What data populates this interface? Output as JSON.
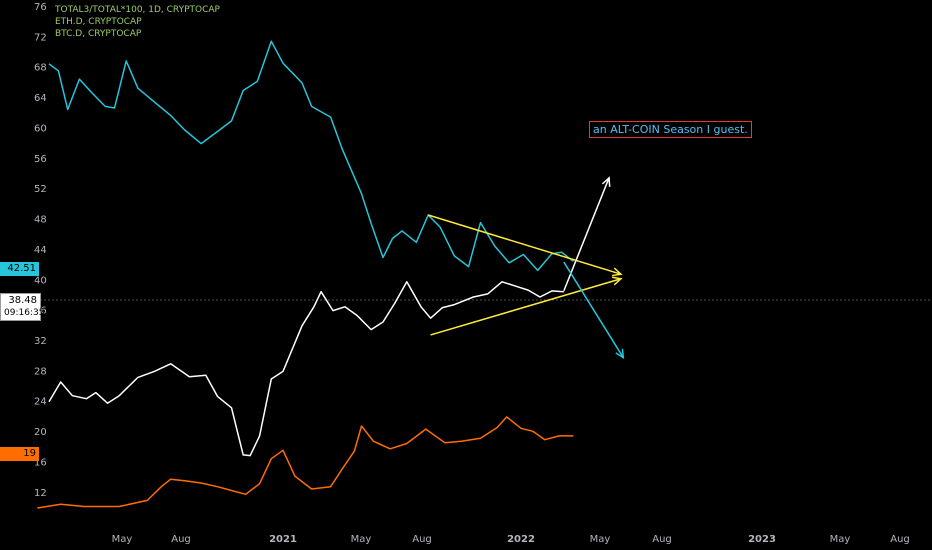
{
  "legend": [
    {
      "label": "TOTAL3/TOTAL*100, 1D, CRYPTOCAP",
      "color": "#9ccc65"
    },
    {
      "label": "ETH.D, CRYPTOCAP",
      "color": "#9ccc65"
    },
    {
      "label": "BTC.D, CRYPTOCAP",
      "color": "#9ccc65"
    }
  ],
  "annotation": "an ALT-COIN Season I guest.",
  "badges": {
    "eth": "42.51",
    "btc": "19",
    "main_value": "38.48",
    "main_time": "09:16:35"
  },
  "chart_data": {
    "type": "line",
    "ylim": [
      10,
      76
    ],
    "y_ticks": [
      76,
      72,
      68,
      64,
      60,
      56,
      52,
      48,
      44,
      40,
      36,
      32,
      28,
      24,
      20,
      16,
      12
    ],
    "x_ticks": [
      "May",
      "Aug",
      "2021",
      "May",
      "Aug",
      "2022",
      "May",
      "Aug",
      "2023",
      "May",
      "Aug"
    ],
    "series": [
      {
        "color": "#26c6da",
        "points": [
          [
            0,
            68.5
          ],
          [
            0.04,
            67.6
          ],
          [
            0.08,
            62.5
          ],
          [
            0.13,
            66.5
          ],
          [
            0.18,
            64.8
          ],
          [
            0.24,
            62.9
          ],
          [
            0.28,
            62.7
          ],
          [
            0.33,
            68.9
          ],
          [
            0.38,
            65.3
          ],
          [
            0.45,
            63.5
          ],
          [
            0.52,
            61.7
          ],
          [
            0.58,
            59.8
          ],
          [
            0.65,
            58
          ],
          [
            0.72,
            59.6
          ],
          [
            0.78,
            61
          ],
          [
            0.83,
            65
          ],
          [
            0.89,
            66.2
          ],
          [
            0.95,
            71.5
          ],
          [
            1.0,
            68.6
          ],
          [
            1.08,
            66
          ],
          [
            1.12,
            62.9
          ],
          [
            1.2,
            61.5
          ],
          [
            1.25,
            57.2
          ],
          [
            1.33,
            51.4
          ],
          [
            1.37,
            47.5
          ],
          [
            1.42,
            43
          ],
          [
            1.46,
            45.5
          ],
          [
            1.5,
            46.5
          ],
          [
            1.56,
            45
          ],
          [
            1.61,
            48.6
          ],
          [
            1.66,
            47
          ],
          [
            1.72,
            43.2
          ],
          [
            1.78,
            41.8
          ],
          [
            1.83,
            47.6
          ],
          [
            1.89,
            44.5
          ],
          [
            1.95,
            42.3
          ],
          [
            2.01,
            43.4
          ],
          [
            2.07,
            41.3
          ],
          [
            2.13,
            43.5
          ],
          [
            2.17,
            43.7
          ],
          [
            2.22,
            42.5
          ]
        ]
      },
      {
        "color": "#ffffff",
        "points": [
          [
            0,
            24
          ],
          [
            0.05,
            26.6
          ],
          [
            0.1,
            24.8
          ],
          [
            0.16,
            24.4
          ],
          [
            0.2,
            25.2
          ],
          [
            0.25,
            23.8
          ],
          [
            0.3,
            24.8
          ],
          [
            0.38,
            27.2
          ],
          [
            0.45,
            28
          ],
          [
            0.52,
            29
          ],
          [
            0.6,
            27.3
          ],
          [
            0.67,
            27.5
          ],
          [
            0.72,
            24.7
          ],
          [
            0.78,
            23.2
          ],
          [
            0.83,
            17
          ],
          [
            0.86,
            16.9
          ],
          [
            0.9,
            19.5
          ],
          [
            0.95,
            27
          ],
          [
            1.0,
            28
          ],
          [
            1.08,
            34
          ],
          [
            1.13,
            36.5
          ],
          [
            1.16,
            38.5
          ],
          [
            1.21,
            36
          ],
          [
            1.26,
            36.5
          ],
          [
            1.31,
            35.4
          ],
          [
            1.37,
            33.5
          ],
          [
            1.42,
            34.5
          ],
          [
            1.47,
            37
          ],
          [
            1.52,
            39.8
          ],
          [
            1.58,
            36.5
          ],
          [
            1.62,
            35
          ],
          [
            1.67,
            36.4
          ],
          [
            1.72,
            36.8
          ],
          [
            1.8,
            37.8
          ],
          [
            1.86,
            38.2
          ],
          [
            1.92,
            39.8
          ],
          [
            1.98,
            39.2
          ],
          [
            2.03,
            38.7
          ],
          [
            2.08,
            37.8
          ],
          [
            2.13,
            38.6
          ],
          [
            2.18,
            38.5
          ]
        ]
      },
      {
        "color": "#ff6d00",
        "points": [
          [
            -0.05,
            10
          ],
          [
            0.05,
            10.5
          ],
          [
            0.15,
            10.2
          ],
          [
            0.3,
            10.2
          ],
          [
            0.42,
            11
          ],
          [
            0.48,
            12.8
          ],
          [
            0.52,
            13.8
          ],
          [
            0.58,
            13.6
          ],
          [
            0.65,
            13.3
          ],
          [
            0.72,
            12.8
          ],
          [
            0.78,
            12.3
          ],
          [
            0.84,
            11.8
          ],
          [
            0.9,
            13.2
          ],
          [
            0.95,
            16.5
          ],
          [
            1.0,
            17.6
          ],
          [
            1.05,
            14.2
          ],
          [
            1.12,
            12.5
          ],
          [
            1.2,
            12.8
          ],
          [
            1.25,
            15.2
          ],
          [
            1.3,
            17.5
          ],
          [
            1.33,
            20.8
          ],
          [
            1.38,
            18.8
          ],
          [
            1.45,
            17.8
          ],
          [
            1.52,
            18.5
          ],
          [
            1.6,
            20.4
          ],
          [
            1.68,
            18.6
          ],
          [
            1.75,
            18.8
          ],
          [
            1.83,
            19.2
          ],
          [
            1.9,
            20.6
          ],
          [
            1.94,
            22
          ],
          [
            2.0,
            20.5
          ],
          [
            2.05,
            20.1
          ],
          [
            2.1,
            19
          ],
          [
            2.16,
            19.5
          ],
          [
            2.22,
            19.5
          ]
        ]
      }
    ],
    "drawings": [
      {
        "color": "#ffeb3b",
        "from": [
          1.61,
          48.6
        ],
        "to": [
          2.42,
          40.8
        ]
      },
      {
        "color": "#ffeb3b",
        "from": [
          1.62,
          32.8
        ],
        "to": [
          2.42,
          40.2
        ]
      },
      {
        "color": "#ffffff",
        "from": [
          2.18,
          38.6
        ],
        "to": [
          2.37,
          53.5
        ]
      },
      {
        "color": "#26c6da",
        "from": [
          2.18,
          42.4
        ],
        "to": [
          2.43,
          29.8
        ]
      }
    ]
  }
}
